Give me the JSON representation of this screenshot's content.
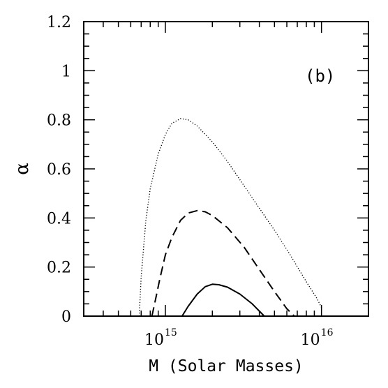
{
  "chart_data": {
    "type": "line",
    "xscale": "log",
    "xlim": [
      300000000000000.0,
      2e+16
    ],
    "ylim": [
      0,
      1.2
    ],
    "xlabel": "M (Solar Masses)",
    "ylabel": "α",
    "annotation": "(b)",
    "grid": false,
    "yticks": [
      "0",
      "0.2",
      "0.4",
      "0.6",
      "0.8",
      "1",
      "1.2"
    ],
    "xticks": [
      {
        "base": "10",
        "exp": "15",
        "value": 1000000000000000.0
      },
      {
        "base": "10",
        "exp": "16",
        "value": 1e+16
      }
    ],
    "series": [
      {
        "style": "dotted",
        "x": [
          680000000000000.0,
          700000000000000.0,
          750000000000000.0,
          800000000000000.0,
          900000000000000.0,
          1000000000000000.0,
          1100000000000000.0,
          1250000000000000.0,
          1400000000000000.0,
          1600000000000000.0,
          2000000000000000.0,
          2500000000000000.0,
          3200000000000000.0,
          4000000000000000.0,
          5000000000000000.0,
          6300000000000000.0,
          8000000000000000.0,
          9400000000000000.0,
          1.01e+16
        ],
        "y": [
          0.0,
          0.16,
          0.39,
          0.52,
          0.66,
          0.74,
          0.785,
          0.805,
          0.8,
          0.775,
          0.71,
          0.63,
          0.53,
          0.44,
          0.35,
          0.25,
          0.14,
          0.07,
          0.03
        ]
      },
      {
        "style": "dashed",
        "x": [
          820000000000000.0,
          860000000000000.0,
          920000000000000.0,
          1000000000000000.0,
          1100000000000000.0,
          1250000000000000.0,
          1400000000000000.0,
          1600000000000000.0,
          1800000000000000.0,
          2000000000000000.0,
          2500000000000000.0,
          3200000000000000.0,
          4000000000000000.0,
          5000000000000000.0,
          6000000000000000.0,
          6700000000000000.0
        ],
        "y": [
          0.0,
          0.06,
          0.15,
          0.25,
          0.32,
          0.39,
          0.42,
          0.43,
          0.425,
          0.41,
          0.36,
          0.28,
          0.19,
          0.1,
          0.03,
          0.0
        ]
      },
      {
        "style": "solid",
        "x": [
          1280000000000000.0,
          1400000000000000.0,
          1600000000000000.0,
          1800000000000000.0,
          2000000000000000.0,
          2200000000000000.0,
          2500000000000000.0,
          3000000000000000.0,
          3600000000000000.0,
          4300000000000000.0
        ],
        "y": [
          0.0,
          0.04,
          0.09,
          0.12,
          0.13,
          0.128,
          0.118,
          0.09,
          0.05,
          0.0
        ]
      }
    ]
  }
}
